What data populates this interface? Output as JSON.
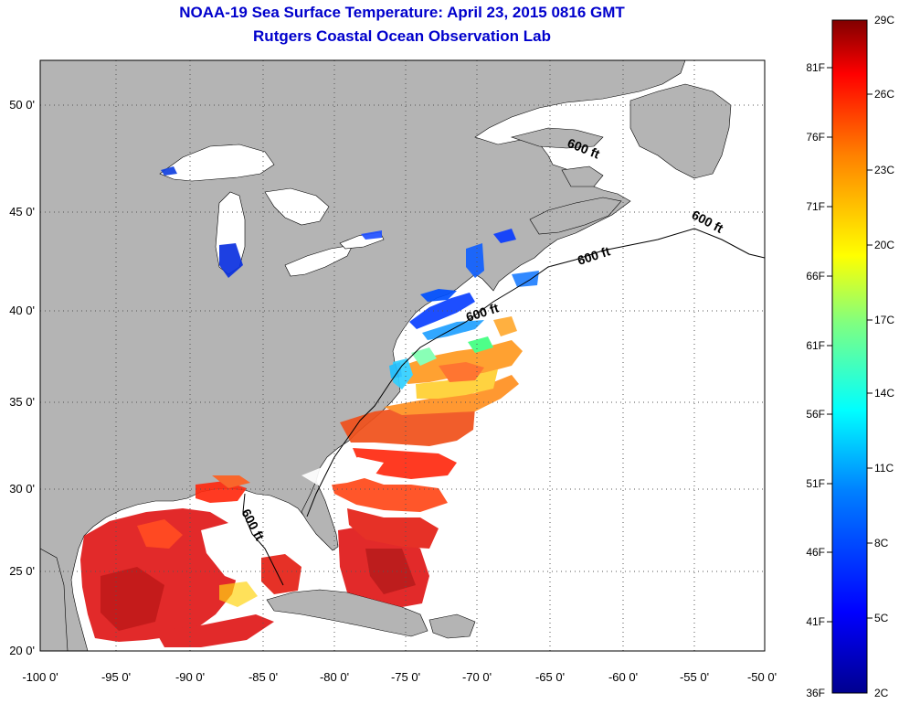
{
  "title": "NOAA-19 Sea Surface Temperature:  April 23, 2015 0816 GMT",
  "subtitle": "Rutgers Coastal Ocean Observation Lab",
  "map": {
    "lon_labels": [
      "-100 0'",
      "-95 0'",
      "-90 0'",
      "-85 0'",
      "-80 0'",
      "-75 0'",
      "-70 0'",
      "-65 0'",
      "-60 0'",
      "-55 0'",
      "-50 0'"
    ],
    "lat_labels": [
      "20 0'",
      "25 0'",
      "30 0'",
      "35 0'",
      "40 0'",
      "45 0'",
      "50 0'"
    ],
    "contour_label": "600 ft",
    "colors": {
      "land": "#b4b4b4",
      "no_data": "#ffffff",
      "grid": "#555555"
    }
  },
  "colorbar": {
    "fahrenheit_labels": [
      "81F",
      "76F",
      "71F",
      "66F",
      "61F",
      "56F",
      "51F",
      "46F",
      "41F",
      "36F"
    ],
    "celsius_labels": [
      "29C",
      "26C",
      "23C",
      "20C",
      "17C",
      "14C",
      "11C",
      "8C",
      "5C",
      "2C"
    ],
    "colors": [
      "#00008f",
      "#0000ff",
      "#0080ff",
      "#00ffff",
      "#80ff80",
      "#ffff00",
      "#ff8000",
      "#ff0000",
      "#800000"
    ]
  }
}
